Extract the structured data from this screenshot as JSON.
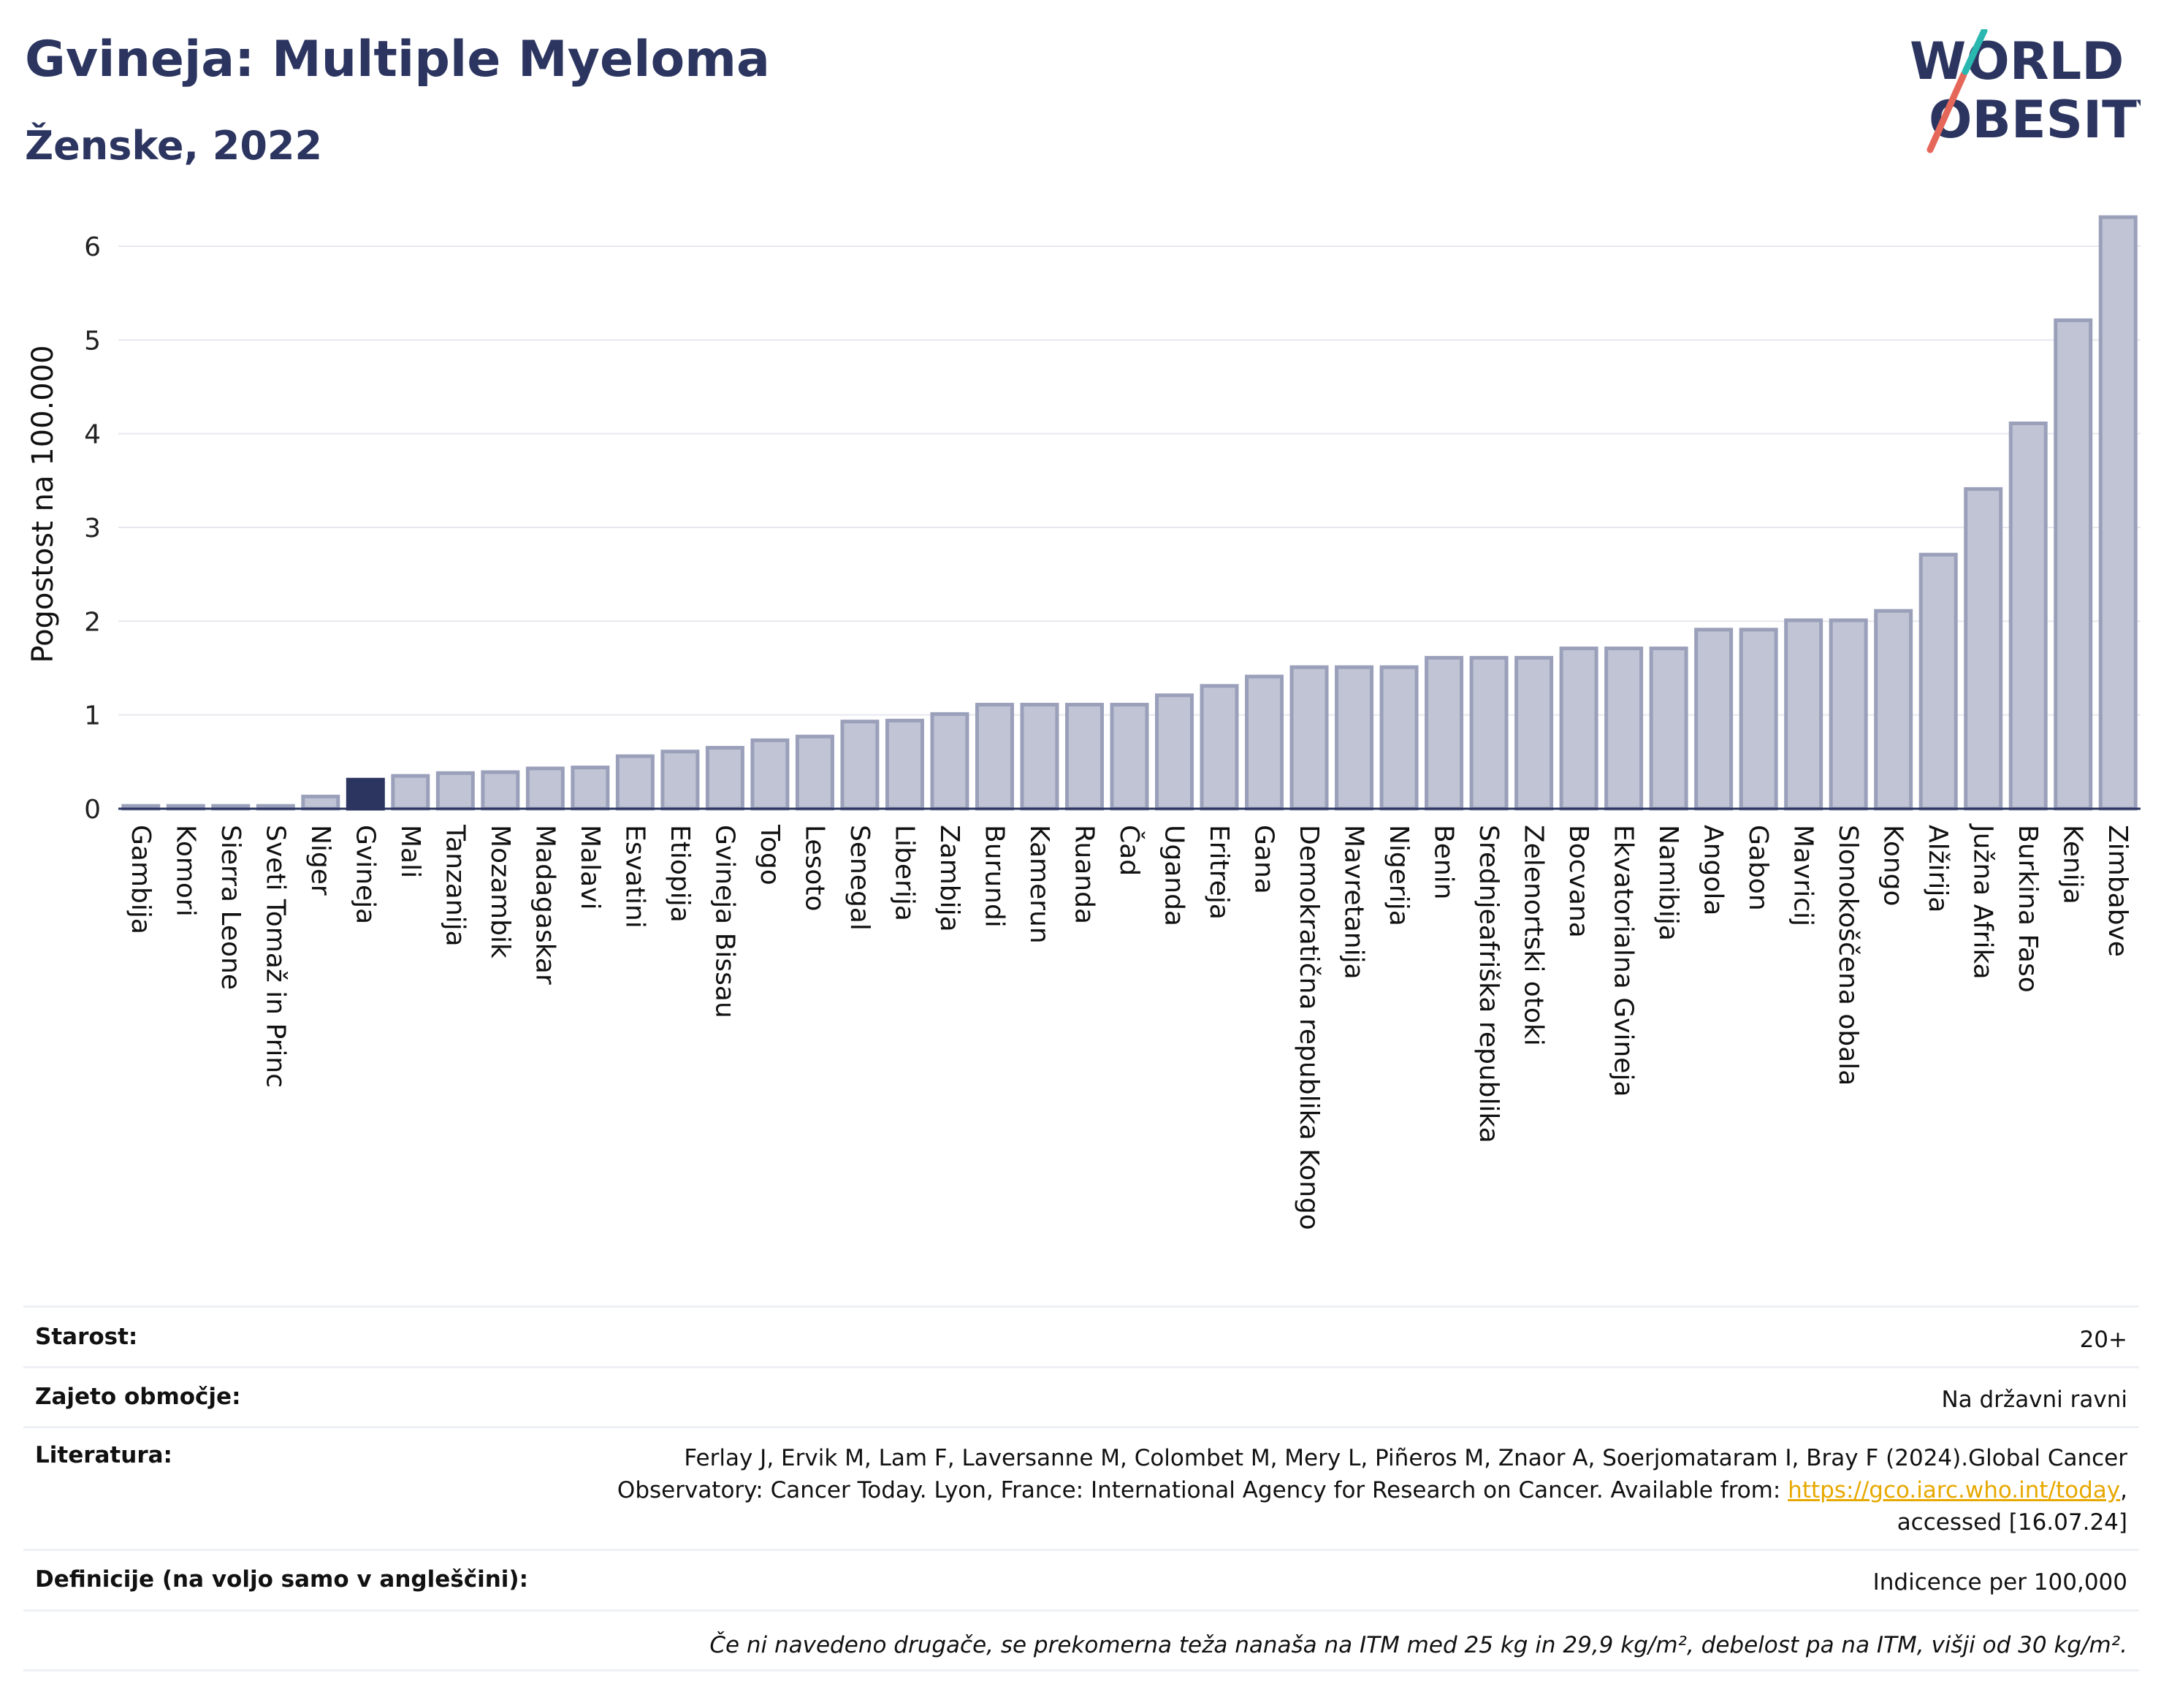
{
  "header": {
    "title": "Gvineja: Multiple Myeloma",
    "subtitle": "Ženske, 2022"
  },
  "logo": {
    "line1": "WORLD",
    "line2": "OBESITY"
  },
  "colors": {
    "highlight": "#2b3560",
    "bar": "#c0c4d4",
    "bar_stroke": "#9aa0ba",
    "logo_teal": "#2ab7b0",
    "logo_red": "#e5675a"
  },
  "chart_data": {
    "type": "bar",
    "ylabel": "Pogostost na 100.000",
    "ylim": [
      0,
      6.6
    ],
    "yticks": [
      "0",
      "1",
      "2",
      "3",
      "4",
      "5",
      "6"
    ],
    "grid": true,
    "highlight": "Gvineja",
    "categories": [
      "Gambija",
      "Komori",
      "Sierra Leone",
      "Sveti Tomaž in Princ",
      "Niger",
      "Gvineja",
      "Mali",
      "Tanzanija",
      "Mozambik",
      "Madagaskar",
      "Malavi",
      "Esvatini",
      "Etiopija",
      "Gvineja Bissau",
      "Togo",
      "Lesoto",
      "Senegal",
      "Liberija",
      "Zambija",
      "Burundi",
      "Kamerun",
      "Ruanda",
      "Čad",
      "Uganda",
      "Eritreja",
      "Gana",
      "Demokratična republika Kongo",
      "Mavretanija",
      "Nigerija",
      "Benin",
      "Srednjeafriška republika",
      "Zelenortski otoki",
      "Bocvana",
      "Ekvatorialna Gvineja",
      "Namibija",
      "Angola",
      "Gabon",
      "Mavricij",
      "Slonokoščena obala",
      "Kongo",
      "Alžirija",
      "Južna Afrika",
      "Burkina Faso",
      "Kenija",
      "Zimbabve"
    ],
    "values": [
      0.03,
      0.03,
      0.03,
      0.03,
      0.13,
      0.31,
      0.35,
      0.38,
      0.39,
      0.43,
      0.44,
      0.56,
      0.61,
      0.65,
      0.73,
      0.77,
      0.93,
      0.94,
      1.01,
      1.11,
      1.11,
      1.11,
      1.11,
      1.21,
      1.31,
      1.41,
      1.51,
      1.51,
      1.51,
      1.61,
      1.61,
      1.61,
      1.71,
      1.71,
      1.71,
      1.91,
      1.91,
      2.01,
      2.01,
      2.11,
      2.71,
      3.41,
      4.11,
      5.21,
      6.31
    ]
  },
  "info": {
    "age_label": "Starost:",
    "age_value": "20+",
    "coverage_label": "Zajeto območje:",
    "coverage_value": "Na državni ravni",
    "lit_label": "Literatura:",
    "lit_line1": "Ferlay J, Ervik M, Lam F, Laversanne M, Colombet M, Mery L, Piñeros M, Znaor A, Soerjomataram I, Bray F (2024).Global Cancer",
    "lit_line2_pre": "Observatory: Cancer Today. Lyon, France: International Agency for Research on Cancer. Available from: ",
    "lit_link": "https://gco.iarc.who.int/today",
    "lit_line2_post": ",",
    "lit_line3": "accessed [16.07.24]",
    "def_label": "Definicije (na voljo samo v angleščini):",
    "def_value": "Indicence per 100,000",
    "note": "Če ni navedeno drugače, se prekomerna teža nanaša na ITM med 25 kg in 29,9 kg/m², debelost pa na ITM, višji od 30 kg/m²."
  }
}
